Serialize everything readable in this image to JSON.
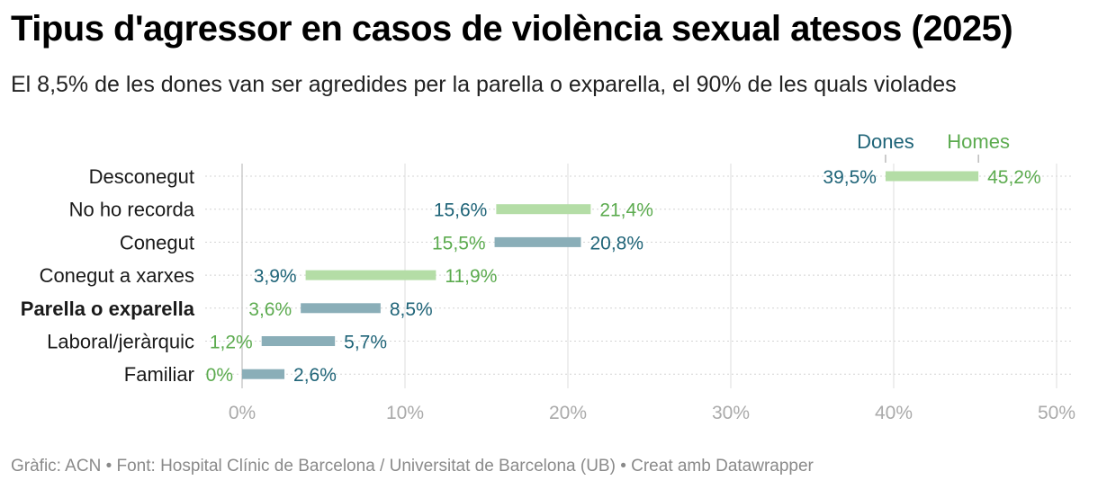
{
  "header": {
    "title": "Tipus d'agressor en casos de violència sexual atesos (2025)",
    "subtitle": "El 8,5% de les dones van ser agredides per la parella o exparella, el 90% de les quals violades"
  },
  "footer": {
    "text": "Gràfic: ACN • Font: Hospital Clínic de Barcelona / Universitat de Barcelona (UB) • Creat amb Datawrapper"
  },
  "colors": {
    "dones": "#1f6478",
    "homes": "#5cab4f",
    "bar_dones_higher": "#8aaeb8",
    "bar_homes_higher": "#b4dda6",
    "grid": "#dddddd",
    "baseline": "#cccccc"
  },
  "chart_data": {
    "type": "range",
    "xlim": [
      0,
      50
    ],
    "xticks": [
      0,
      10,
      20,
      30,
      40,
      50
    ],
    "xtick_labels": [
      "0%",
      "10%",
      "20%",
      "30%",
      "40%",
      "50%"
    ],
    "legend": {
      "dones": "Dones",
      "homes": "Homes"
    },
    "categories": [
      "Desconegut",
      "No ho recorda",
      "Conegut",
      "Conegut a xarxes",
      "Parella o exparella",
      "Laboral/jeràrquic",
      "Familiar"
    ],
    "highlight_category": "Parella o exparella",
    "series": [
      {
        "name": "Dones",
        "values": [
          39.5,
          15.6,
          20.8,
          3.9,
          8.5,
          5.7,
          2.6
        ],
        "labels": [
          "39,5%",
          "15,6%",
          "20,8%",
          "3,9%",
          "8,5%",
          "5,7%",
          "2,6%"
        ]
      },
      {
        "name": "Homes",
        "values": [
          45.2,
          21.4,
          15.5,
          11.9,
          3.6,
          1.2,
          0
        ],
        "labels": [
          "45,2%",
          "21,4%",
          "15,5%",
          "11,9%",
          "3,6%",
          "1,2%",
          "0%"
        ]
      }
    ]
  }
}
